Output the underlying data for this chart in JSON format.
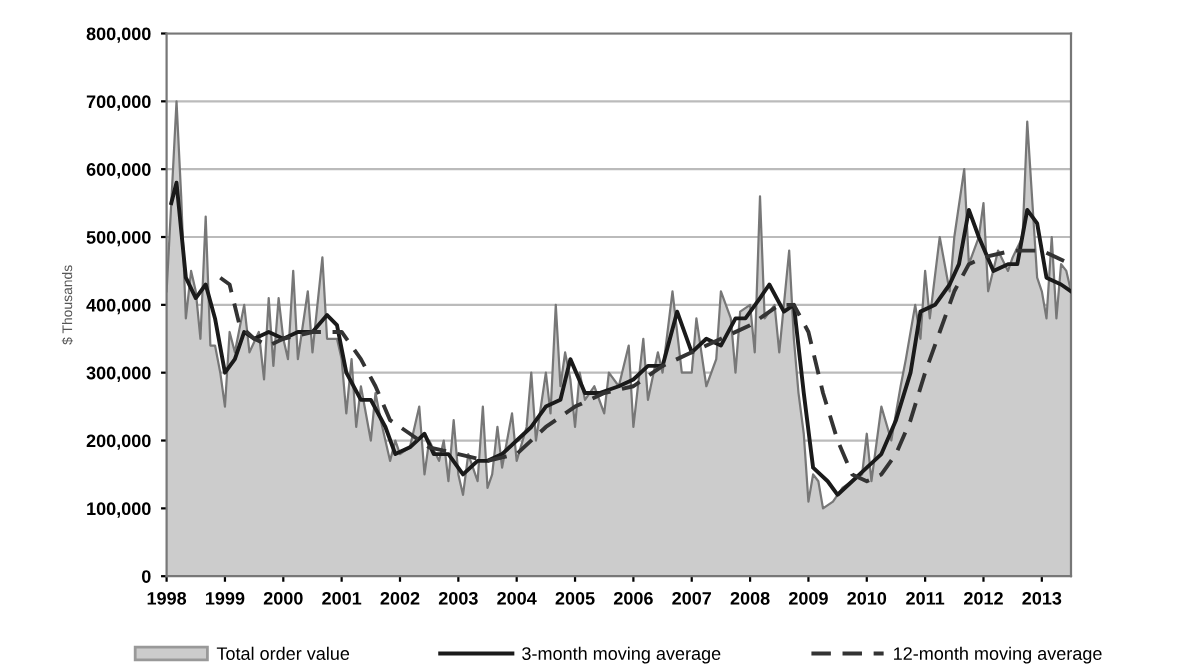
{
  "chart_data": {
    "type": "line",
    "ylabel": "$ Thousands",
    "xlim": [
      1998,
      2013.5
    ],
    "xticks": [
      1998,
      1999,
      2000,
      2001,
      2002,
      2003,
      2004,
      2005,
      2006,
      2007,
      2008,
      2009,
      2010,
      2011,
      2012,
      2013
    ],
    "ylim": [
      0,
      800000
    ],
    "yticks": [
      0,
      {
        "value": 100000,
        "label": "100,000"
      },
      {
        "value": 200000,
        "label": "200,000"
      },
      {
        "value": 300000,
        "label": "300,000"
      },
      {
        "value": 400000,
        "label": "400,000"
      },
      {
        "value": 500000,
        "label": "500,000"
      },
      {
        "value": 600000,
        "label": "600,000"
      },
      {
        "value": 700000,
        "label": "700,000"
      },
      {
        "value": 800000,
        "label": "800,000"
      }
    ],
    "grid": "y",
    "legend": "bottom",
    "marker": "none",
    "series": [
      {
        "name": "Total order value",
        "type": "area",
        "color": "#cccccc",
        "x": [
          1998.0,
          1998.08,
          1998.17,
          1998.25,
          1998.33,
          1998.42,
          1998.5,
          1998.58,
          1998.67,
          1998.75,
          1998.83,
          1998.92,
          1999.0,
          1999.08,
          1999.17,
          1999.33,
          1999.42,
          1999.58,
          1999.67,
          1999.75,
          1999.83,
          1999.92,
          2000.0,
          2000.08,
          2000.17,
          2000.25,
          2000.42,
          2000.5,
          2000.67,
          2000.75,
          2000.92,
          2001.0,
          2001.08,
          2001.17,
          2001.25,
          2001.33,
          2001.5,
          2001.58,
          2001.67,
          2001.83,
          2001.92,
          2002.0,
          2002.17,
          2002.33,
          2002.42,
          2002.5,
          2002.67,
          2002.75,
          2002.83,
          2002.92,
          2003.0,
          2003.08,
          2003.17,
          2003.33,
          2003.42,
          2003.5,
          2003.58,
          2003.67,
          2003.75,
          2003.92,
          2004.0,
          2004.17,
          2004.25,
          2004.33,
          2004.5,
          2004.58,
          2004.67,
          2004.75,
          2004.83,
          2004.92,
          2005.0,
          2005.08,
          2005.17,
          2005.33,
          2005.5,
          2005.58,
          2005.75,
          2005.92,
          2006.0,
          2006.17,
          2006.25,
          2006.42,
          2006.5,
          2006.67,
          2006.83,
          2007.0,
          2007.08,
          2007.25,
          2007.42,
          2007.5,
          2007.67,
          2007.75,
          2007.83,
          2008.0,
          2008.08,
          2008.17,
          2008.25,
          2008.42,
          2008.5,
          2008.67,
          2008.75,
          2008.83,
          2008.92,
          2009.0,
          2009.08,
          2009.17,
          2009.25,
          2009.42,
          2009.58,
          2009.75,
          2009.92,
          2010.0,
          2010.08,
          2010.25,
          2010.42,
          2010.58,
          2010.67,
          2010.83,
          2010.92,
          2011.0,
          2011.08,
          2011.25,
          2011.42,
          2011.5,
          2011.67,
          2011.75,
          2011.92,
          2012.0,
          2012.08,
          2012.25,
          2012.42,
          2012.5,
          2012.67,
          2012.75,
          2012.92,
          2013.0,
          2013.08,
          2013.17,
          2013.25,
          2013.33,
          2013.42,
          2013.5
        ],
        "values": [
          420000,
          550000,
          700000,
          560000,
          380000,
          450000,
          420000,
          350000,
          530000,
          340000,
          340000,
          300000,
          250000,
          360000,
          330000,
          400000,
          330000,
          360000,
          290000,
          410000,
          310000,
          410000,
          350000,
          320000,
          450000,
          320000,
          420000,
          330000,
          470000,
          350000,
          350000,
          320000,
          240000,
          320000,
          220000,
          280000,
          200000,
          270000,
          230000,
          170000,
          200000,
          180000,
          190000,
          250000,
          150000,
          200000,
          170000,
          200000,
          140000,
          230000,
          150000,
          120000,
          180000,
          140000,
          250000,
          130000,
          150000,
          220000,
          160000,
          240000,
          170000,
          220000,
          300000,
          200000,
          300000,
          240000,
          400000,
          280000,
          330000,
          290000,
          220000,
          300000,
          260000,
          280000,
          240000,
          300000,
          280000,
          340000,
          220000,
          350000,
          260000,
          330000,
          300000,
          420000,
          300000,
          300000,
          380000,
          280000,
          320000,
          420000,
          380000,
          300000,
          390000,
          400000,
          330000,
          560000,
          380000,
          400000,
          330000,
          480000,
          350000,
          270000,
          210000,
          110000,
          150000,
          140000,
          100000,
          110000,
          130000,
          140000,
          150000,
          210000,
          140000,
          250000,
          200000,
          280000,
          320000,
          400000,
          350000,
          450000,
          380000,
          500000,
          420000,
          500000,
          600000,
          460000,
          500000,
          550000,
          420000,
          480000,
          450000,
          470000,
          500000,
          670000,
          440000,
          420000,
          380000,
          500000,
          380000,
          460000,
          450000,
          420000
        ]
      },
      {
        "name": "3-month moving average",
        "color": "#1a1a1a",
        "line_style": "solid",
        "x": [
          1998.08,
          1998.17,
          1998.33,
          1998.5,
          1998.67,
          1998.83,
          1999.0,
          1999.17,
          1999.33,
          1999.5,
          1999.75,
          2000.0,
          2000.25,
          2000.5,
          2000.75,
          2000.92,
          2001.08,
          2001.33,
          2001.5,
          2001.75,
          2001.92,
          2002.17,
          2002.42,
          2002.58,
          2002.83,
          2003.08,
          2003.33,
          2003.5,
          2003.75,
          2004.0,
          2004.25,
          2004.5,
          2004.75,
          2004.92,
          2005.17,
          2005.42,
          2005.75,
          2006.0,
          2006.25,
          2006.5,
          2006.75,
          2007.0,
          2007.25,
          2007.5,
          2007.75,
          2007.92,
          2008.17,
          2008.33,
          2008.58,
          2008.75,
          2008.92,
          2009.08,
          2009.33,
          2009.5,
          2009.75,
          2010.0,
          2010.25,
          2010.5,
          2010.75,
          2010.92,
          2011.17,
          2011.42,
          2011.58,
          2011.75,
          2011.92,
          2012.17,
          2012.42,
          2012.58,
          2012.75,
          2012.92,
          2013.08,
          2013.33,
          2013.5
        ],
        "values": [
          550000,
          580000,
          440000,
          410000,
          430000,
          380000,
          300000,
          320000,
          360000,
          350000,
          360000,
          350000,
          360000,
          360000,
          385000,
          370000,
          300000,
          260000,
          260000,
          220000,
          180000,
          190000,
          210000,
          180000,
          180000,
          150000,
          170000,
          170000,
          180000,
          200000,
          220000,
          250000,
          260000,
          320000,
          270000,
          270000,
          280000,
          290000,
          310000,
          310000,
          390000,
          330000,
          350000,
          340000,
          380000,
          380000,
          410000,
          430000,
          390000,
          400000,
          270000,
          160000,
          140000,
          120000,
          140000,
          160000,
          180000,
          230000,
          300000,
          390000,
          400000,
          430000,
          460000,
          540000,
          500000,
          450000,
          460000,
          460000,
          540000,
          520000,
          440000,
          430000,
          420000
        ]
      },
      {
        "name": "12-month moving average",
        "color": "#333333",
        "line_style": "dashed",
        "x": [
          1998.92,
          1999.08,
          1999.25,
          1999.5,
          1999.75,
          2000.0,
          2000.5,
          2000.75,
          2001.0,
          2001.33,
          2001.58,
          2001.83,
          2002.17,
          2002.5,
          2003.0,
          2003.5,
          2004.0,
          2004.5,
          2005.0,
          2005.5,
          2006.0,
          2006.5,
          2007.0,
          2007.5,
          2008.0,
          2008.5,
          2008.75,
          2009.0,
          2009.25,
          2009.5,
          2009.75,
          2010.0,
          2010.25,
          2010.5,
          2010.75,
          2011.0,
          2011.25,
          2011.5,
          2011.75,
          2012.0,
          2012.5,
          2013.0,
          2013.5
        ],
        "values": [
          440000,
          430000,
          370000,
          350000,
          340000,
          350000,
          360000,
          360000,
          360000,
          320000,
          280000,
          230000,
          210000,
          190000,
          180000,
          170000,
          180000,
          220000,
          250000,
          270000,
          280000,
          310000,
          330000,
          350000,
          370000,
          400000,
          400000,
          360000,
          270000,
          200000,
          150000,
          140000,
          150000,
          180000,
          230000,
          300000,
          360000,
          420000,
          460000,
          470000,
          480000,
          480000,
          460000
        ]
      }
    ]
  }
}
